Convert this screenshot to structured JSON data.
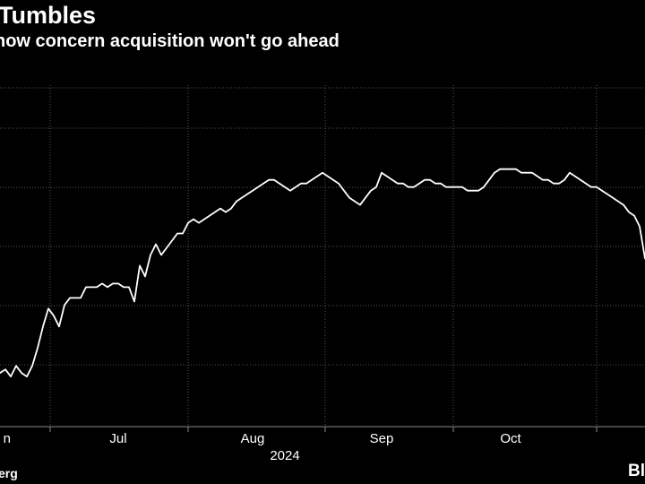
{
  "header": {
    "title": "Tumbles",
    "subtitle": "how concern acquisition won't go ahead"
  },
  "footer": {
    "source": "erg",
    "brand": "Bl"
  },
  "colors": {
    "background": "#000000",
    "line": "#ffffff",
    "grid": "#555555",
    "axis": "#888888",
    "text": "#ffffff"
  },
  "chart_data": {
    "type": "line",
    "title": "Tumbles",
    "subtitle": "how concern acquisition won't go ahead",
    "xlabel": "",
    "ylabel": "",
    "x_range": [
      0,
      120
    ],
    "ylim": [
      0,
      100
    ],
    "x_ticks": [
      {
        "x": 0,
        "label": "n"
      },
      {
        "x": 22,
        "label": "Jul"
      },
      {
        "x": 47,
        "label": "Aug"
      },
      {
        "x": 71,
        "label": "Sep"
      },
      {
        "x": 95,
        "label": "Oct"
      }
    ],
    "x_sublabel": {
      "x": 53,
      "label": "2024"
    },
    "grid": true,
    "series": [
      {
        "values": [
          [
            0,
            15
          ],
          [
            1,
            16
          ],
          [
            2,
            14
          ],
          [
            3,
            17
          ],
          [
            4,
            15
          ],
          [
            5,
            14
          ],
          [
            6,
            17
          ],
          [
            7,
            22
          ],
          [
            8,
            28
          ],
          [
            9,
            33
          ],
          [
            10,
            31
          ],
          [
            11,
            28
          ],
          [
            12,
            34
          ],
          [
            13,
            36
          ],
          [
            14,
            36
          ],
          [
            15,
            36
          ],
          [
            16,
            39
          ],
          [
            17,
            39
          ],
          [
            18,
            39
          ],
          [
            19,
            40
          ],
          [
            20,
            39
          ],
          [
            21,
            40
          ],
          [
            22,
            40
          ],
          [
            23,
            39
          ],
          [
            24,
            39
          ],
          [
            25,
            35
          ],
          [
            26,
            45
          ],
          [
            27,
            42
          ],
          [
            28,
            48
          ],
          [
            29,
            51
          ],
          [
            30,
            48
          ],
          [
            31,
            50
          ],
          [
            32,
            52
          ],
          [
            33,
            54
          ],
          [
            34,
            54
          ],
          [
            35,
            57
          ],
          [
            36,
            58
          ],
          [
            37,
            57
          ],
          [
            38,
            58
          ],
          [
            39,
            59
          ],
          [
            40,
            60
          ],
          [
            41,
            61
          ],
          [
            42,
            60
          ],
          [
            43,
            61
          ],
          [
            44,
            63
          ],
          [
            45,
            64
          ],
          [
            46,
            65
          ],
          [
            47,
            66
          ],
          [
            48,
            67
          ],
          [
            49,
            68
          ],
          [
            50,
            69
          ],
          [
            51,
            69
          ],
          [
            52,
            68
          ],
          [
            53,
            67
          ],
          [
            54,
            66
          ],
          [
            55,
            67
          ],
          [
            56,
            68
          ],
          [
            57,
            68
          ],
          [
            58,
            69
          ],
          [
            59,
            70
          ],
          [
            60,
            71
          ],
          [
            61,
            70
          ],
          [
            62,
            69
          ],
          [
            63,
            68
          ],
          [
            64,
            66
          ],
          [
            65,
            64
          ],
          [
            66,
            63
          ],
          [
            67,
            62
          ],
          [
            68,
            64
          ],
          [
            69,
            66
          ],
          [
            70,
            67
          ],
          [
            71,
            71
          ],
          [
            72,
            70
          ],
          [
            73,
            69
          ],
          [
            74,
            68
          ],
          [
            75,
            68
          ],
          [
            76,
            67
          ],
          [
            77,
            67
          ],
          [
            78,
            68
          ],
          [
            79,
            69
          ],
          [
            80,
            69
          ],
          [
            81,
            68
          ],
          [
            82,
            68
          ],
          [
            83,
            67
          ],
          [
            84,
            67
          ],
          [
            85,
            67
          ],
          [
            86,
            67
          ],
          [
            87,
            66
          ],
          [
            88,
            66
          ],
          [
            89,
            66
          ],
          [
            90,
            67
          ],
          [
            91,
            69
          ],
          [
            92,
            71
          ],
          [
            93,
            72
          ],
          [
            94,
            72
          ],
          [
            95,
            72
          ],
          [
            96,
            72
          ],
          [
            97,
            71
          ],
          [
            98,
            71
          ],
          [
            99,
            71
          ],
          [
            100,
            70
          ],
          [
            101,
            69
          ],
          [
            102,
            69
          ],
          [
            103,
            68
          ],
          [
            104,
            68
          ],
          [
            105,
            69
          ],
          [
            106,
            71
          ],
          [
            107,
            70
          ],
          [
            108,
            69
          ],
          [
            109,
            68
          ],
          [
            110,
            67
          ],
          [
            111,
            67
          ],
          [
            112,
            66
          ],
          [
            113,
            65
          ],
          [
            114,
            64
          ],
          [
            115,
            63
          ],
          [
            116,
            62
          ],
          [
            117,
            60
          ],
          [
            118,
            59
          ],
          [
            119,
            56
          ],
          [
            120,
            47
          ]
        ]
      }
    ]
  }
}
